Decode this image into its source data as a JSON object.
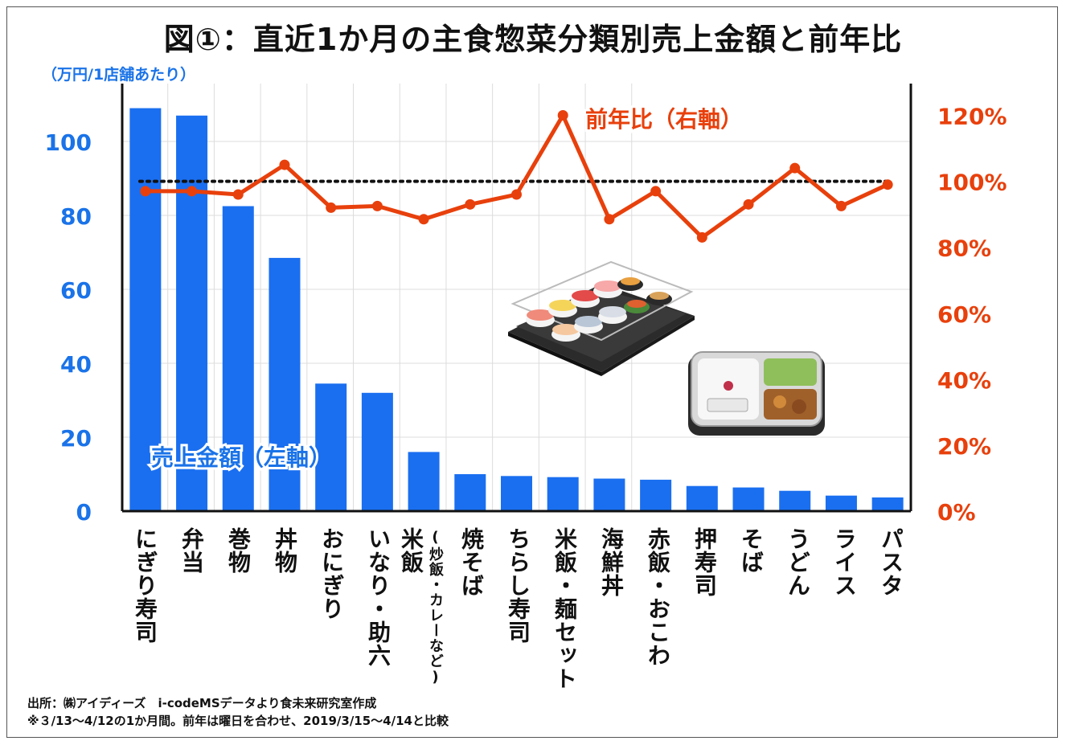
{
  "title": "図①：直近1か月の主食惣菜分類別売上金額と前年比",
  "unit_label": "（万円/1店舗あたり）",
  "colors": {
    "bar": "#1a6ff0",
    "line": "#e8400c",
    "left_axis_text": "#1a73e8",
    "right_axis_text": "#e8400c"
  },
  "chart_data": {
    "type": "bar",
    "title": "図①：直近1か月の主食惣菜分類別売上金額と前年比",
    "categories": [
      "にぎり寿司",
      "弁当",
      "巻物",
      "丼物",
      "おにぎり",
      "いなり・助六",
      "米飯",
      "焼そば",
      "ちらし寿司",
      "米飯・麺セット",
      "海鮮丼",
      "赤飯・おこわ",
      "押寿司",
      "そば",
      "うどん",
      "ライス",
      "パスタ"
    ],
    "category_sublabels": [
      "",
      "",
      "",
      "",
      "",
      "",
      "(炒飯・カレーなど)",
      "",
      "",
      "",
      "",
      "",
      "",
      "",
      "",
      "",
      ""
    ],
    "series": [
      {
        "name": "売上金額（左軸）",
        "axis": "left",
        "type": "bar",
        "values": [
          109,
          107,
          82.5,
          68.5,
          34.5,
          32,
          16,
          10,
          9.5,
          9.2,
          8.8,
          8.5,
          6.8,
          6.4,
          5.5,
          4.2,
          3.7
        ]
      },
      {
        "name": "前年比（右軸）",
        "axis": "right",
        "type": "line",
        "values": [
          97,
          97,
          96,
          105,
          92,
          92.5,
          88.5,
          93,
          96,
          120,
          88.5,
          97,
          83,
          93,
          104,
          92.5,
          99
        ]
      }
    ],
    "reference_line": {
      "axis": "right",
      "value": 100,
      "style": "dotted"
    },
    "left_axis": {
      "ticks": [
        0,
        20,
        40,
        60,
        80,
        100
      ],
      "ylim": [
        0,
        110
      ]
    },
    "right_axis": {
      "ticks": [
        "0%",
        "20%",
        "40%",
        "60%",
        "80%",
        "100%",
        "120%"
      ],
      "values": [
        0,
        20,
        40,
        60,
        80,
        100,
        120
      ],
      "ylim": [
        0,
        120
      ]
    },
    "series_labels": {
      "bar": "売上金額（左軸）",
      "line": "前年比（右軸）"
    },
    "grid": true
  },
  "notes": {
    "line1": "出所：㈱アイディーズ　i-codeMSデータより食未来研究室作成",
    "line2": "※３/13～4/12の1か月間。前年は曜日を合わせ、2019/3/15～4/14と比較"
  },
  "images": {
    "sushi_tray": "sushi-tray-illustration",
    "bento_box": "bento-box-illustration"
  }
}
